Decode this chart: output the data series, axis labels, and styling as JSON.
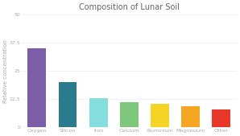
{
  "title": "Composition of Lunar Soil",
  "categories": [
    "Oxygen",
    "Silicon",
    "Iron",
    "Calcium",
    "Aluminium",
    "Magnesium",
    "Other"
  ],
  "values": [
    35,
    20,
    13,
    11,
    10.5,
    9.5,
    8
  ],
  "bar_colors": [
    "#7B5EA7",
    "#2A7B8E",
    "#85DEDE",
    "#7DC87A",
    "#F5D327",
    "#F5A623",
    "#E8382A"
  ],
  "ylabel": "Relative concentration",
  "ylim": [
    0,
    50
  ],
  "yticks": [
    0,
    12.5,
    25,
    37.5,
    50
  ],
  "ytick_labels": [
    "0",
    "12.5",
    "25",
    "37.5",
    "50"
  ],
  "background_color": "#ffffff",
  "grid_color": "#e8e8e8",
  "title_fontsize": 7,
  "label_fontsize": 5,
  "tick_fontsize": 4.5,
  "bar_width": 0.6
}
